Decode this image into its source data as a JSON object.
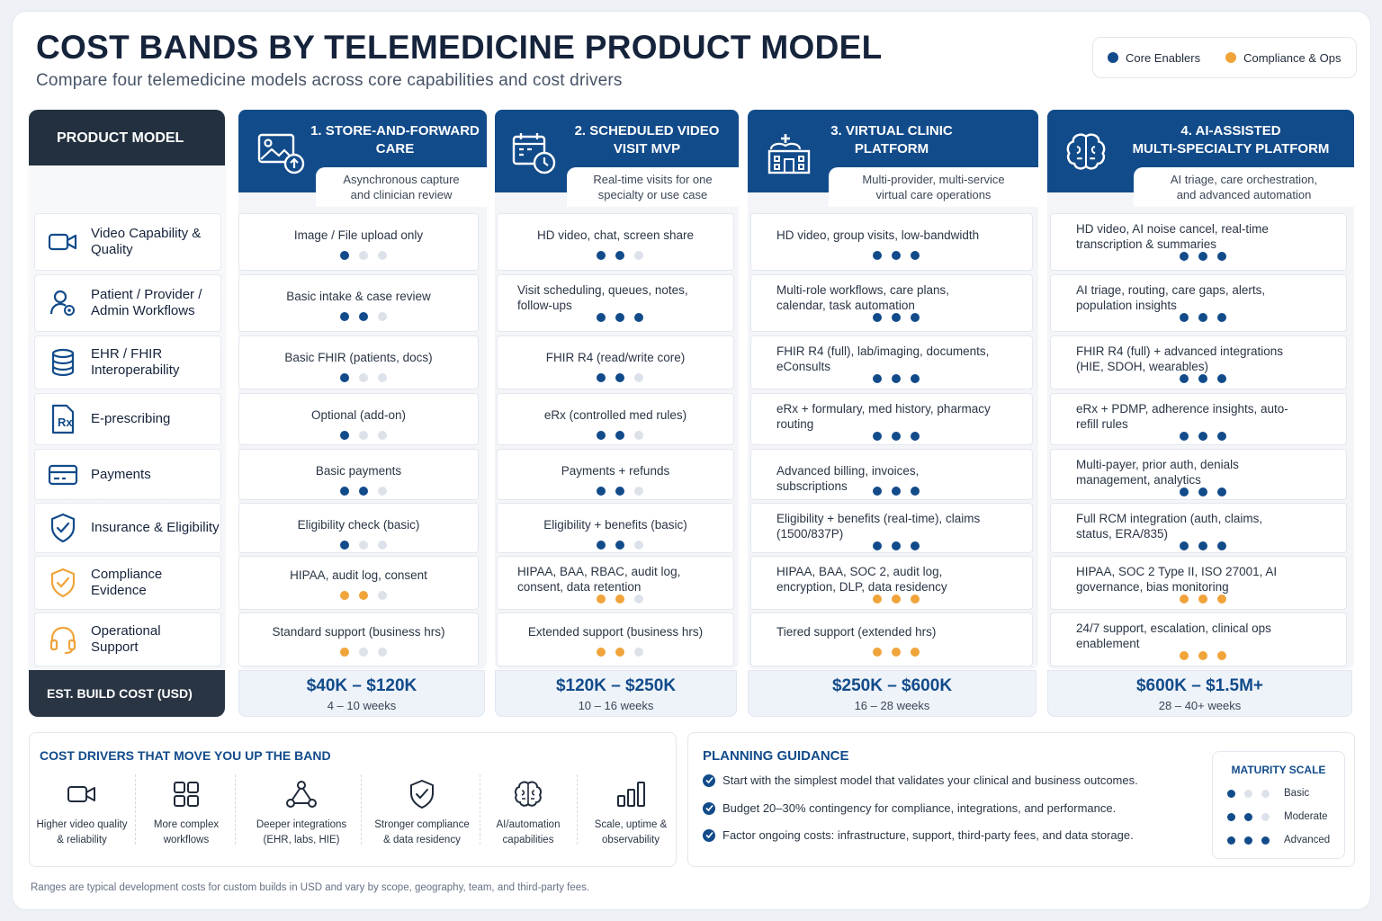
{
  "title": "COST BANDS BY TELEMEDICINE PRODUCT MODEL",
  "subtitle": "Compare four telemedicine models across core capabilities and cost drivers",
  "legend": [
    {
      "label": "Core Enablers",
      "color": "#124b8a"
    },
    {
      "label": "Compliance & Ops",
      "color": "#f0a43a"
    }
  ],
  "colors": {
    "blue": "#124b8a",
    "orange": "#f0a43a",
    "empty": "#dde2ea"
  },
  "row_header": "PRODUCT MODEL",
  "rows": [
    {
      "label": "Video Capability & Quality",
      "icon": "video-icon"
    },
    {
      "label": "Patient / Provider / Admin Workflows",
      "icon": "user-gear-icon"
    },
    {
      "label": "EHR / FHIR Interoperability",
      "icon": "database-icon"
    },
    {
      "label": "E-prescribing",
      "icon": "prescription-icon"
    },
    {
      "label": "Payments",
      "icon": "credit-card-icon"
    },
    {
      "label": "Insurance & Eligibility",
      "icon": "shield-check-icon"
    },
    {
      "label": "Compliance Evidence",
      "icon": "compliance-shield-icon"
    },
    {
      "label": "Operational Support",
      "icon": "headset-icon"
    }
  ],
  "est_label": "EST. BUILD COST (USD)",
  "models": [
    {
      "title_line1": "1. STORE-AND-FORWARD",
      "title_line2": "CARE",
      "icon": "image-upload-icon",
      "desc_line1": "Asynchronous capture",
      "desc_line2": "and clinician review",
      "cells": [
        {
          "text": "Image / File upload only",
          "level": 1,
          "group": "core"
        },
        {
          "text": "Basic intake & case review",
          "level": 2,
          "group": "core"
        },
        {
          "text": "Basic FHIR (patients, docs)",
          "level": 1,
          "group": "core"
        },
        {
          "text": "Optional (add-on)",
          "level": 1,
          "group": "core"
        },
        {
          "text": "Basic payments",
          "level": 2,
          "group": "core"
        },
        {
          "text": "Eligibility check (basic)",
          "level": 1,
          "group": "core"
        },
        {
          "text": "HIPAA, audit log, consent",
          "level": 2,
          "group": "ops"
        },
        {
          "text": "Standard support (business hrs)",
          "level": 1,
          "group": "ops"
        }
      ],
      "cost": "$40K – $120K",
      "weeks": "4 – 10 weeks"
    },
    {
      "title_line1": "2. SCHEDULED VIDEO",
      "title_line2": "VISIT MVP",
      "icon": "calendar-clock-icon",
      "desc_line1": "Real-time visits for one",
      "desc_line2": "specialty or use case",
      "cells": [
        {
          "text": "HD video, chat, screen share",
          "level": 2,
          "group": "core"
        },
        {
          "text": "Visit scheduling, queues, notes, follow-ups",
          "level": 3,
          "group": "core"
        },
        {
          "text": "FHIR R4 (read/write core)",
          "level": 2,
          "group": "core"
        },
        {
          "text": "eRx (controlled med rules)",
          "level": 2,
          "group": "core"
        },
        {
          "text": "Payments + refunds",
          "level": 2,
          "group": "core"
        },
        {
          "text": "Eligibility + benefits (basic)",
          "level": 2,
          "group": "core"
        },
        {
          "text": "HIPAA, BAA, RBAC, audit log, consent, data retention",
          "level": 2,
          "group": "ops"
        },
        {
          "text": "Extended support (business hrs)",
          "level": 2,
          "group": "ops"
        }
      ],
      "cost": "$120K – $250K",
      "weeks": "10 – 16 weeks"
    },
    {
      "title_line1": "3. VIRTUAL CLINIC",
      "title_line2": "PLATFORM",
      "icon": "hospital-icon",
      "desc_line1": "Multi-provider, multi-service",
      "desc_line2": "virtual care operations",
      "cells": [
        {
          "text": "HD video, group visits, low-bandwidth",
          "level": 3,
          "group": "core"
        },
        {
          "text": "Multi-role workflows, care plans, calendar, task automation",
          "level": 3,
          "group": "core"
        },
        {
          "text": "FHIR R4 (full), lab/imaging, documents, eConsults",
          "level": 3,
          "group": "core"
        },
        {
          "text": "eRx + formulary, med history, pharmacy routing",
          "level": 3,
          "group": "core"
        },
        {
          "text": "Advanced billing, invoices, subscriptions",
          "level": 3,
          "group": "core"
        },
        {
          "text": "Eligibility + benefits (real-time), claims (1500/837P)",
          "level": 3,
          "group": "core"
        },
        {
          "text": "HIPAA, BAA, SOC 2, audit log, encryption, DLP, data residency",
          "level": 3,
          "group": "ops"
        },
        {
          "text": "Tiered support (extended hrs)",
          "level": 3,
          "group": "ops"
        }
      ],
      "cost": "$250K – $600K",
      "weeks": "16 – 28 weeks"
    },
    {
      "title_line1": "4. AI-ASSISTED",
      "title_line2": "MULTI-SPECIALTY PLATFORM",
      "icon": "brain-icon",
      "desc_line1": "AI triage, care orchestration,",
      "desc_line2": "and advanced automation",
      "cells": [
        {
          "text": "HD video, AI noise cancel, real-time transcription & summaries",
          "level": 3,
          "group": "core"
        },
        {
          "text": "AI triage, routing, care gaps, alerts, population insights",
          "level": 3,
          "group": "core"
        },
        {
          "text": "FHIR R4 (full) + advanced integrations (HIE, SDOH, wearables)",
          "level": 3,
          "group": "core"
        },
        {
          "text": "eRx + PDMP, adherence insights, auto-refill rules",
          "level": 3,
          "group": "core"
        },
        {
          "text": "Multi-payer, prior auth, denials management, analytics",
          "level": 3,
          "group": "core"
        },
        {
          "text": "Full RCM integration (auth, claims, status, ERA/835)",
          "level": 3,
          "group": "core"
        },
        {
          "text": "HIPAA, SOC 2 Type II, ISO 27001, AI governance, bias monitoring",
          "level": 3,
          "group": "ops"
        },
        {
          "text": "24/7 support, escalation, clinical ops enablement",
          "level": 3,
          "group": "ops"
        }
      ],
      "cost": "$600K – $1.5M+",
      "weeks": "28 – 40+ weeks"
    }
  ],
  "drivers": {
    "heading": "COST DRIVERS THAT MOVE YOU UP THE BAND",
    "items": [
      {
        "line1": "Higher video quality",
        "line2": "& reliability",
        "icon": "video-icon"
      },
      {
        "line1": "More complex",
        "line2": "workflows",
        "icon": "grid-icon"
      },
      {
        "line1": "Deeper integrations",
        "line2": "(EHR, labs, HIE)",
        "icon": "network-icon"
      },
      {
        "line1": "Stronger compliance",
        "line2": "& data residency",
        "icon": "shield-check-icon"
      },
      {
        "line1": "AI/automation",
        "line2": "capabilities",
        "icon": "brain-icon"
      },
      {
        "line1": "Scale, uptime &",
        "line2": "observability",
        "icon": "bar-chart-icon"
      }
    ]
  },
  "planning": {
    "heading": "PLANNING GUIDANCE",
    "items": [
      "Start with the simplest model that validates your clinical and business outcomes.",
      "Budget 20–30% contingency for compliance, integrations, and performance.",
      "Factor ongoing costs: infrastructure, support, third-party fees, and data storage."
    ],
    "maturity": {
      "heading": "MATURITY SCALE",
      "levels": [
        {
          "label": "Basic",
          "level": 1
        },
        {
          "label": "Moderate",
          "level": 2
        },
        {
          "label": "Advanced",
          "level": 3
        }
      ]
    }
  },
  "footnote": "Ranges are typical development costs for custom builds in USD and vary by scope, geography, team, and third-party fees."
}
